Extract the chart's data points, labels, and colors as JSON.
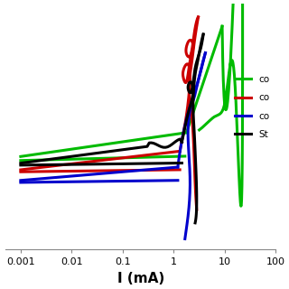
{
  "xlabel": "I (mA)",
  "xlim_log": [
    -3.3,
    2.0
  ],
  "ylim": [
    -0.8,
    1.05
  ],
  "legend": [
    {
      "label": "co",
      "color": "#00bb00"
    },
    {
      "label": "co",
      "color": "#cc0000"
    },
    {
      "label": "co",
      "color": "#0000cc"
    },
    {
      "label": "St",
      "color": "#000000"
    }
  ],
  "background_color": "#ffffff",
  "line_width": 2.2,
  "xticks": [
    0.001,
    0.01,
    0.1,
    1,
    10,
    100
  ],
  "xtick_labels": [
    "0.001",
    "0.01",
    "0.1",
    "1",
    "10",
    "100"
  ],
  "xlabel_fontsize": 11,
  "tick_fontsize": 8
}
